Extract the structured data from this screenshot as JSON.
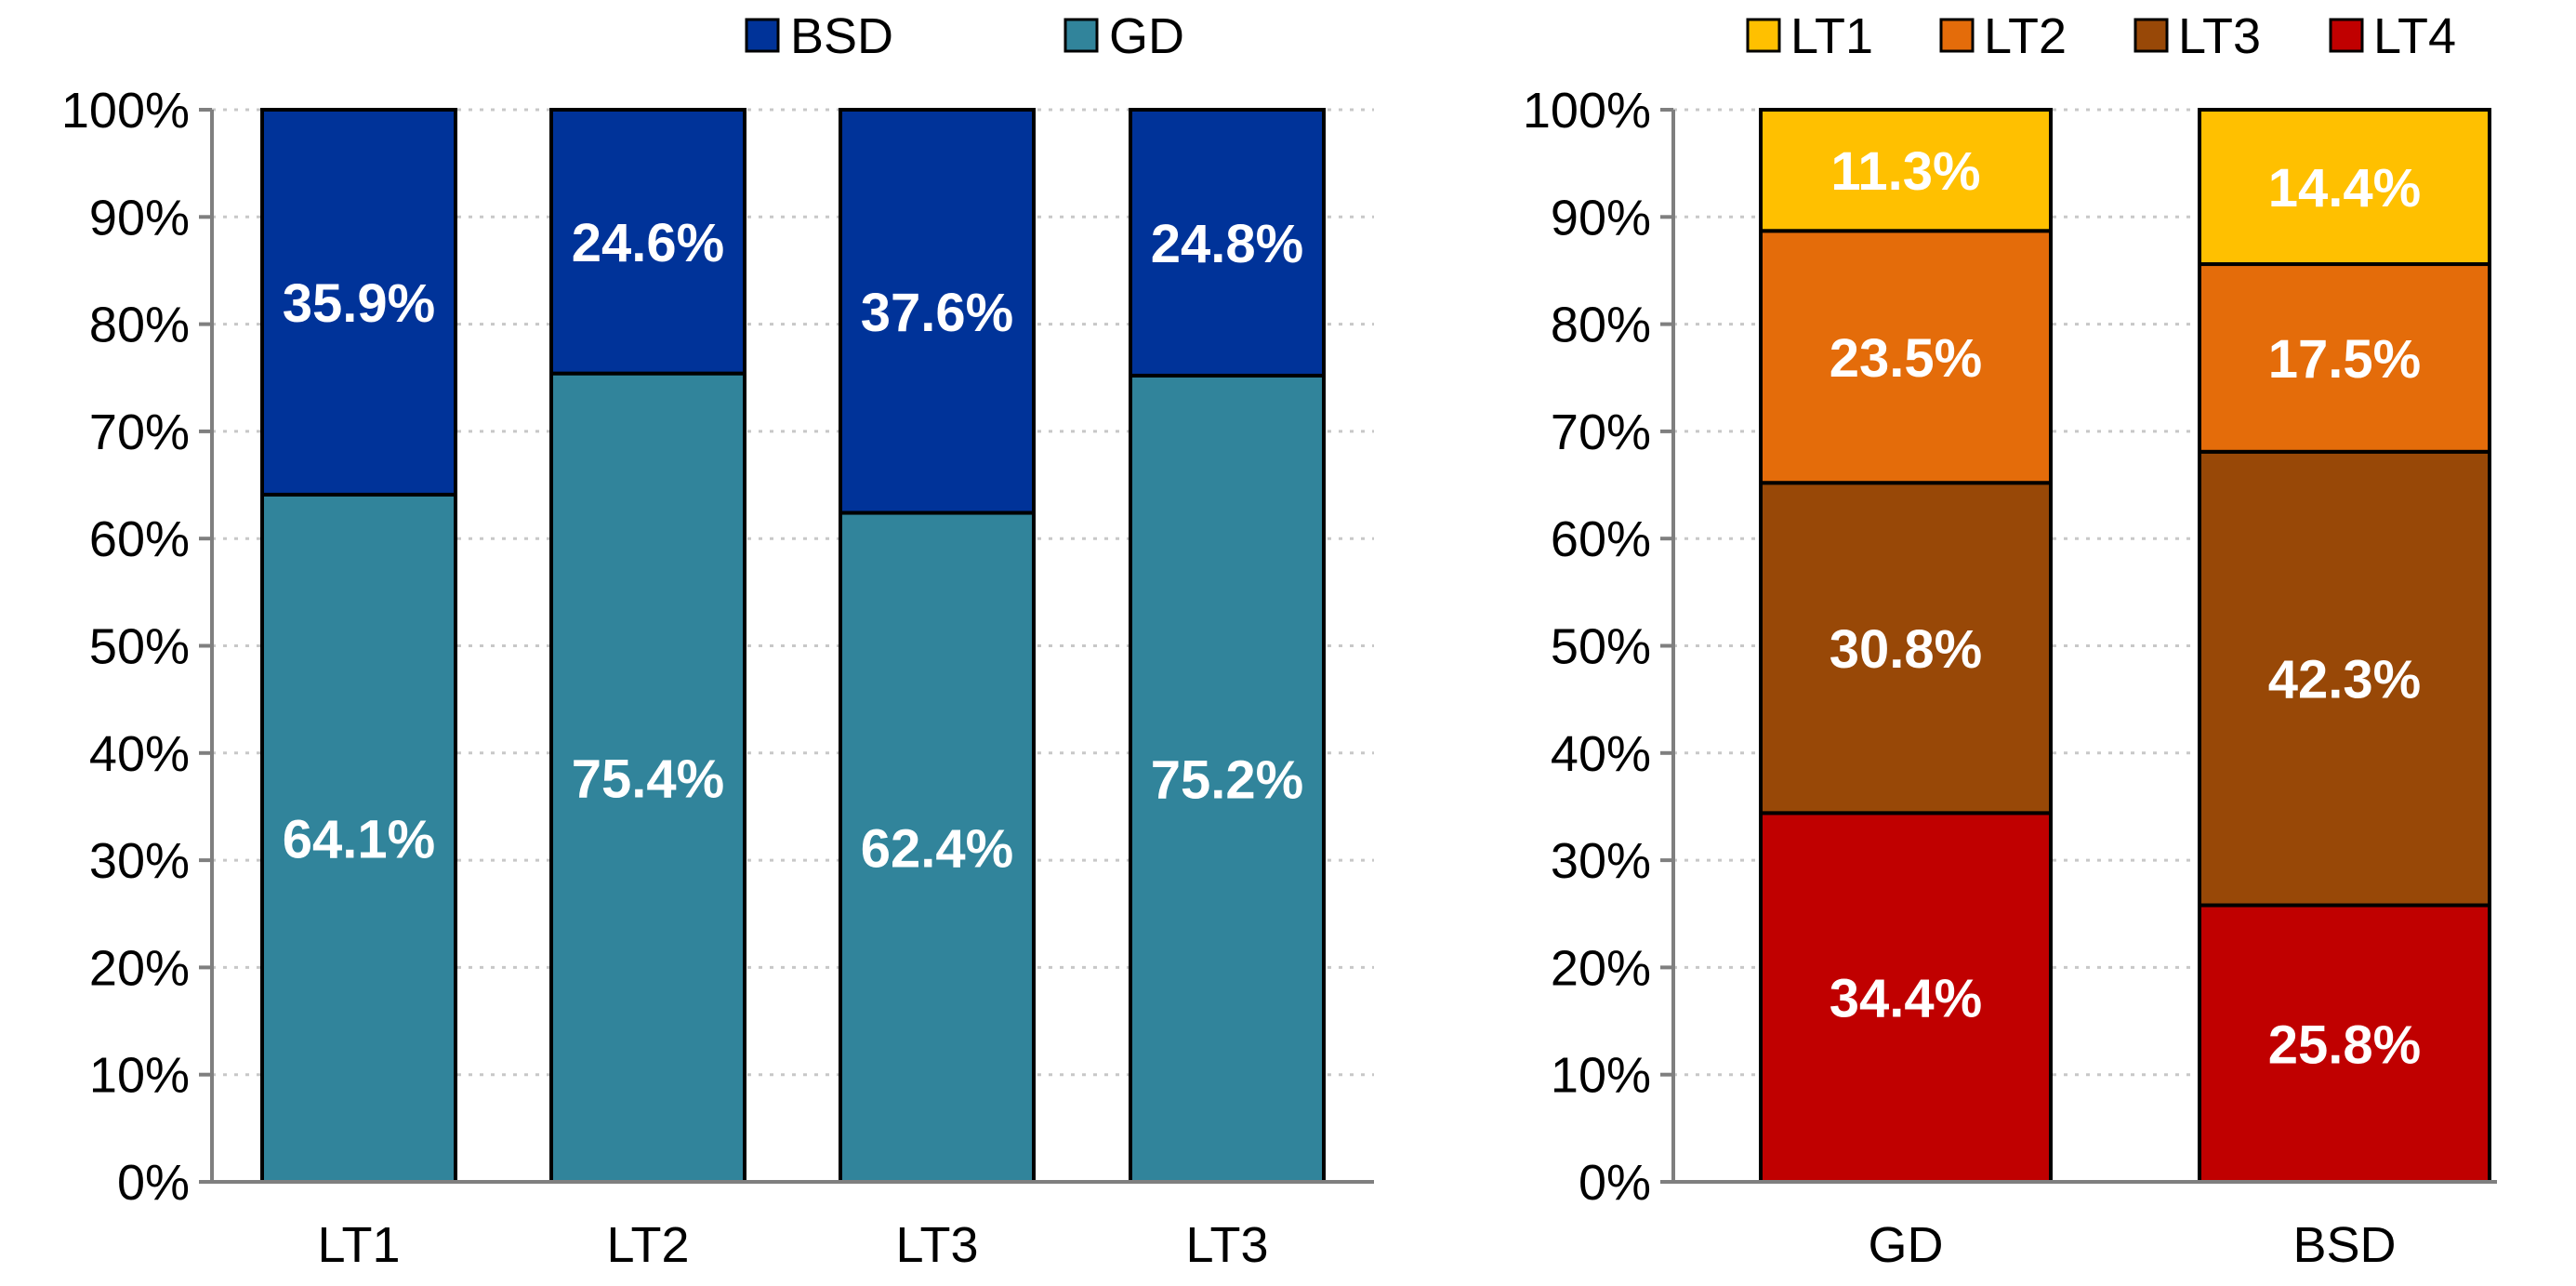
{
  "chart_data": [
    {
      "type": "bar",
      "stacked": true,
      "normalized": true,
      "categories": [
        "LT1",
        "LT2",
        "LT3",
        "LT3"
      ],
      "series": [
        {
          "name": "GD",
          "color": "#31849b",
          "values": [
            64.1,
            75.4,
            62.4,
            75.2
          ]
        },
        {
          "name": "BSD",
          "color": "#003399",
          "values": [
            35.9,
            24.6,
            37.6,
            24.8
          ]
        }
      ],
      "legend": {
        "order": [
          "BSD",
          "GD"
        ],
        "position": "top"
      },
      "ylim": [
        0,
        100
      ],
      "yticks": [
        "0%",
        "10%",
        "20%",
        "30%",
        "40%",
        "50%",
        "60%",
        "70%",
        "80%",
        "90%",
        "100%"
      ],
      "data_labels": true,
      "grid": "horizontal dotted"
    },
    {
      "type": "bar",
      "stacked": true,
      "normalized": true,
      "categories": [
        "GD",
        "BSD"
      ],
      "series": [
        {
          "name": "LT4",
          "color": "#c00000",
          "values": [
            34.4,
            25.8
          ]
        },
        {
          "name": "LT3",
          "color": "#984807",
          "values": [
            30.8,
            42.3
          ]
        },
        {
          "name": "LT2",
          "color": "#e46c0a",
          "values": [
            23.5,
            17.5
          ]
        },
        {
          "name": "LT1",
          "color": "#ffc000",
          "values": [
            11.3,
            14.4
          ]
        }
      ],
      "legend": {
        "order": [
          "LT1",
          "LT2",
          "LT3",
          "LT4"
        ],
        "position": "top"
      },
      "ylim": [
        0,
        100
      ],
      "yticks": [
        "0%",
        "10%",
        "20%",
        "30%",
        "40%",
        "50%",
        "60%",
        "70%",
        "80%",
        "90%",
        "100%"
      ],
      "data_labels": true,
      "grid": "horizontal dotted"
    }
  ]
}
